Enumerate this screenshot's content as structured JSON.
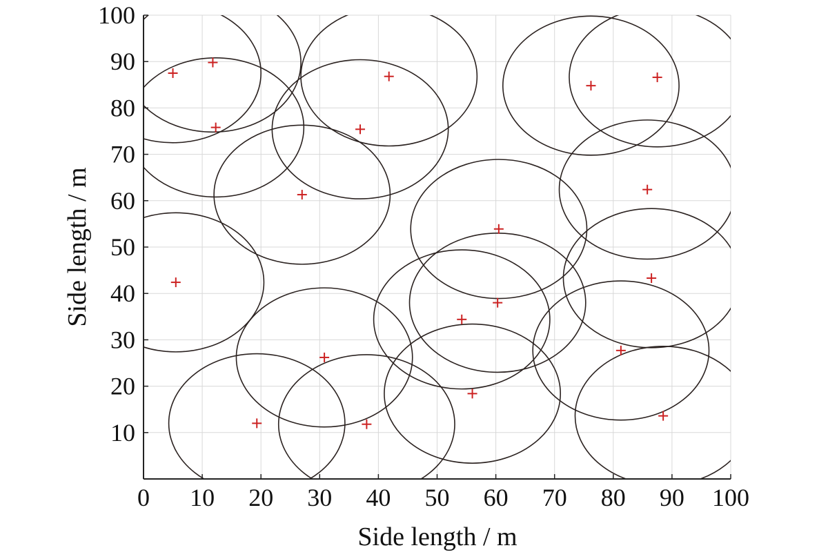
{
  "chart_data": {
    "type": "scatter",
    "title": "",
    "xlabel": "Side length / m",
    "ylabel": "Side length / m",
    "xlim": [
      0,
      100
    ],
    "ylim": [
      0,
      100
    ],
    "grid": true,
    "x_ticks": [
      "0",
      "10",
      "20",
      "30",
      "40",
      "50",
      "60",
      "70",
      "80",
      "90",
      "100"
    ],
    "y_ticks": [
      "10",
      "20",
      "30",
      "40",
      "50",
      "60",
      "70",
      "80",
      "90",
      "100"
    ],
    "coverage_radius": 15,
    "marker": "plus",
    "marker_color": "#cc2222",
    "circle_color": "#2b2220",
    "points": [
      {
        "x": 5,
        "y": 87.5
      },
      {
        "x": 11.8,
        "y": 89.8
      },
      {
        "x": 12.3,
        "y": 75.8
      },
      {
        "x": 41.8,
        "y": 86.8
      },
      {
        "x": 36.9,
        "y": 75.4
      },
      {
        "x": 76.2,
        "y": 84.8
      },
      {
        "x": 87.5,
        "y": 86.6
      },
      {
        "x": 27,
        "y": 61.3
      },
      {
        "x": 85.8,
        "y": 62.4
      },
      {
        "x": 60.5,
        "y": 53.9
      },
      {
        "x": 5.5,
        "y": 42.4
      },
      {
        "x": 86.5,
        "y": 43.3
      },
      {
        "x": 60.3,
        "y": 38
      },
      {
        "x": 54.2,
        "y": 34.4
      },
      {
        "x": 30.8,
        "y": 26.2
      },
      {
        "x": 81.3,
        "y": 27.7
      },
      {
        "x": 56,
        "y": 18.4
      },
      {
        "x": 19.3,
        "y": 12
      },
      {
        "x": 38,
        "y": 11.8
      },
      {
        "x": 88.5,
        "y": 13.6
      }
    ]
  }
}
